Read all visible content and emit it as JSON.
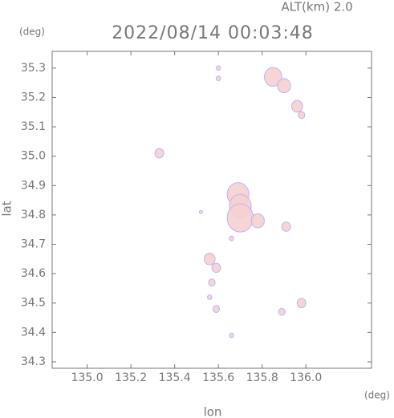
{
  "chart_data": {
    "type": "scatter",
    "title": "2022/08/14 00:03:48",
    "subtitle": "ALT(km) 2.0",
    "x_label": "lon",
    "y_label": "lat",
    "x_unit": "(deg)",
    "y_unit": "(deg)",
    "x": [
      135.33,
      135.6,
      135.6,
      135.85,
      135.9,
      135.96,
      135.98,
      135.69,
      135.7,
      135.7,
      135.78,
      135.66,
      135.91,
      135.56,
      135.59,
      135.57,
      135.56,
      135.59,
      135.89,
      135.98,
      135.66,
      135.52
    ],
    "values": [
      35.01,
      35.3,
      35.265,
      35.27,
      35.24,
      35.17,
      35.14,
      34.87,
      34.83,
      34.79,
      34.78,
      34.72,
      34.76,
      34.65,
      34.62,
      34.57,
      34.52,
      34.48,
      34.47,
      34.5,
      34.39,
      34.81
    ],
    "sizes": [
      0.02,
      0.01,
      0.01,
      0.04,
      0.03,
      0.025,
      0.015,
      0.05,
      0.05,
      0.06,
      0.03,
      0.01,
      0.02,
      0.025,
      0.02,
      0.015,
      0.01,
      0.015,
      0.015,
      0.02,
      0.01,
      0.005
    ],
    "color": "#f6cfd0",
    "edge_color": "#b8b8f0",
    "xlim": [
      134.84,
      136.3
    ],
    "ylim": [
      34.278,
      35.357
    ],
    "xticks": [
      {
        "value": 135,
        "label": "135.0"
      },
      135.2,
      135.4,
      135.6,
      135.8,
      {
        "value": 136,
        "label": "136.0"
      }
    ],
    "yticks": [
      34.3,
      34.4,
      34.5,
      34.6,
      34.7,
      34.8,
      34.9,
      {
        "value": 35,
        "label": "35.0"
      },
      35.1,
      35.2,
      35.3
    ]
  }
}
